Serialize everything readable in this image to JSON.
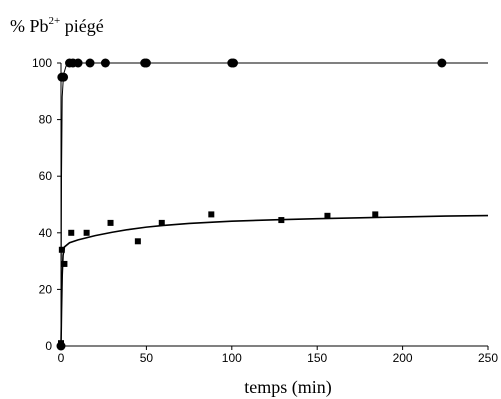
{
  "chart_data": {
    "type": "scatter",
    "title": "",
    "ylabel_prefix": "% Pb",
    "ylabel_sup": "2+",
    "ylabel_suffix": " piégé",
    "xlabel": "temps (min)",
    "xlim": [
      0,
      250
    ],
    "ylim": [
      0,
      100
    ],
    "x_ticks": [
      0,
      50,
      100,
      150,
      200,
      250
    ],
    "y_ticks": [
      0,
      20,
      40,
      60,
      80,
      100
    ],
    "grid": false,
    "series": [
      {
        "marker": "circle",
        "points": [
          [
            0,
            0
          ],
          [
            0.5,
            95
          ],
          [
            1.5,
            95
          ],
          [
            5,
            100
          ],
          [
            7,
            100
          ],
          [
            10,
            100
          ],
          [
            17,
            100
          ],
          [
            26,
            100
          ],
          [
            49,
            100
          ],
          [
            50,
            100
          ],
          [
            100,
            100
          ],
          [
            101,
            100
          ],
          [
            223,
            100
          ]
        ],
        "fit": [
          [
            0,
            0
          ],
          [
            0.3,
            60
          ],
          [
            0.7,
            88
          ],
          [
            1.5,
            96
          ],
          [
            3,
            99
          ],
          [
            6,
            100
          ],
          [
            250,
            100
          ]
        ]
      },
      {
        "marker": "square",
        "points": [
          [
            0,
            1
          ],
          [
            0.5,
            34
          ],
          [
            2,
            29
          ],
          [
            6,
            40
          ],
          [
            15,
            40
          ],
          [
            29,
            43.5
          ],
          [
            45,
            37
          ],
          [
            59,
            43.5
          ],
          [
            88,
            46.5
          ],
          [
            129,
            44.5
          ],
          [
            156,
            46
          ],
          [
            184,
            46.5
          ]
        ],
        "fit": [
          [
            0,
            0
          ],
          [
            0.3,
            12
          ],
          [
            0.7,
            25
          ],
          [
            1.2,
            32
          ],
          [
            2,
            35
          ],
          [
            5,
            36.5
          ],
          [
            10,
            37.5
          ],
          [
            20,
            39
          ],
          [
            30,
            40.2
          ],
          [
            40,
            41.2
          ],
          [
            50,
            42
          ],
          [
            60,
            42.6
          ],
          [
            75,
            43.3
          ],
          [
            90,
            43.8
          ],
          [
            100,
            44.1
          ],
          [
            125,
            44.6
          ],
          [
            150,
            45
          ],
          [
            175,
            45.3
          ],
          [
            200,
            45.6
          ],
          [
            225,
            45.9
          ],
          [
            250,
            46.1
          ]
        ]
      }
    ]
  }
}
